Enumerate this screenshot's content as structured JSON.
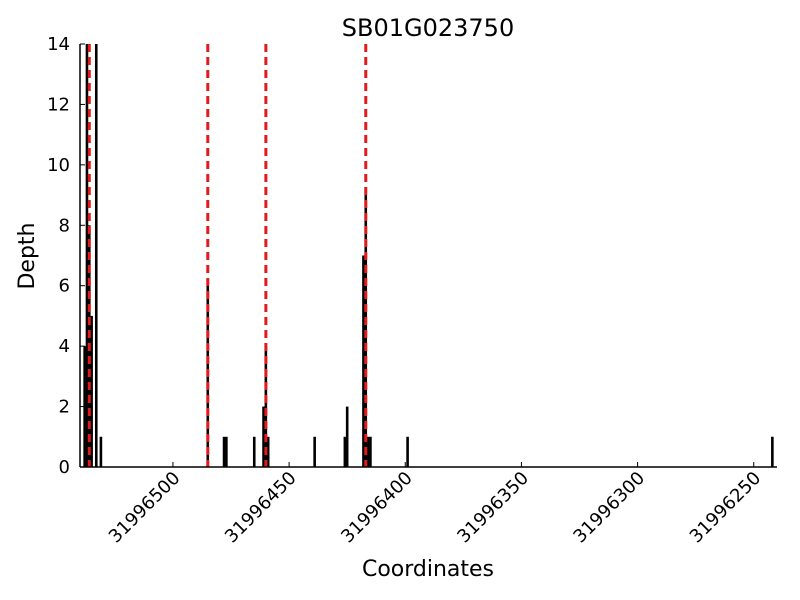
{
  "chart_data": {
    "type": "bar",
    "title": "SB01G023750",
    "xlabel": "Coordinates",
    "ylabel": "Depth",
    "xlim": [
      31996540,
      31996240
    ],
    "ylim": [
      0,
      14
    ],
    "x_reversed": true,
    "y_ticks": [
      0,
      2,
      4,
      6,
      8,
      10,
      12,
      14
    ],
    "x_ticks": [
      31996500,
      31996450,
      31996400,
      31996350,
      31996300,
      31996250
    ],
    "grid": false,
    "bar_color": "#000000",
    "bars": [
      {
        "x": 31996538,
        "y": 4
      },
      {
        "x": 31996537,
        "y": 14
      },
      {
        "x": 31996536,
        "y": 8
      },
      {
        "x": 31996535,
        "y": 5
      },
      {
        "x": 31996533,
        "y": 14
      },
      {
        "x": 31996531,
        "y": 1
      },
      {
        "x": 31996485,
        "y": 6
      },
      {
        "x": 31996478,
        "y": 1
      },
      {
        "x": 31996477,
        "y": 1
      },
      {
        "x": 31996465,
        "y": 1
      },
      {
        "x": 31996461,
        "y": 2
      },
      {
        "x": 31996460,
        "y": 4
      },
      {
        "x": 31996459,
        "y": 1
      },
      {
        "x": 31996439,
        "y": 1
      },
      {
        "x": 31996426,
        "y": 1
      },
      {
        "x": 31996425,
        "y": 2
      },
      {
        "x": 31996418,
        "y": 7
      },
      {
        "x": 31996417,
        "y": 9
      },
      {
        "x": 31996416,
        "y": 1
      },
      {
        "x": 31996415,
        "y": 1
      },
      {
        "x": 31996399,
        "y": 1
      },
      {
        "x": 31996242,
        "y": 1
      }
    ],
    "reference_lines": {
      "color": "#e31a1c",
      "style": "dashed",
      "x": [
        31996536,
        31996485,
        31996460,
        31996417
      ]
    }
  }
}
